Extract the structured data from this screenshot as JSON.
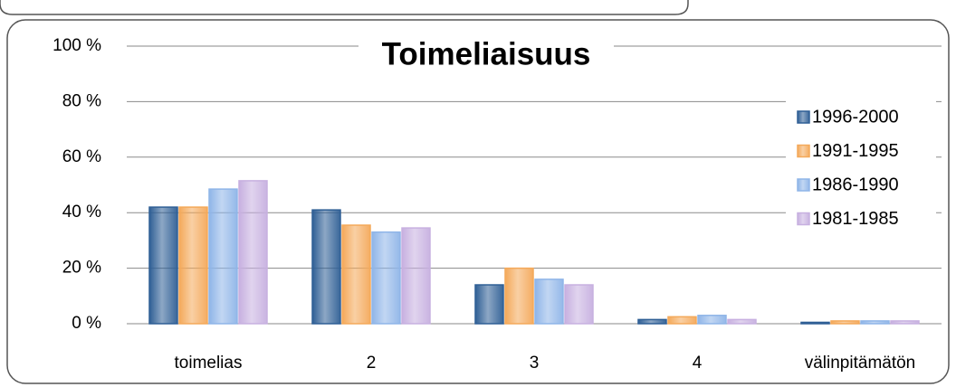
{
  "chart_data": {
    "type": "bar",
    "title": "Toimeliaisuus",
    "categories": [
      "toimelias",
      "2",
      "3",
      "4",
      "välinpitämätön"
    ],
    "series": [
      {
        "name": "1996-2000",
        "color": "#2f5f95",
        "values": [
          42,
          41,
          14,
          1.5,
          0.5
        ]
      },
      {
        "name": "1991-1995",
        "color": "#f4a95a",
        "values": [
          42,
          35.5,
          20,
          2.5,
          1
        ]
      },
      {
        "name": "1986-1990",
        "color": "#8fb5e8",
        "values": [
          48.5,
          33,
          16,
          3,
          1
        ]
      },
      {
        "name": "1981-1985",
        "color": "#c7b0e0",
        "values": [
          51.5,
          34.5,
          14,
          1.5,
          1
        ]
      }
    ],
    "ylim": [
      0,
      100
    ],
    "yticks": [
      {
        "value": 0,
        "label": "0 %"
      },
      {
        "value": 20,
        "label": "20 %"
      },
      {
        "value": 40,
        "label": "40 %"
      },
      {
        "value": 60,
        "label": "60 %"
      },
      {
        "value": 80,
        "label": "80 %"
      },
      {
        "value": 100,
        "label": "100 %"
      }
    ],
    "grid": true,
    "legend": "right"
  }
}
